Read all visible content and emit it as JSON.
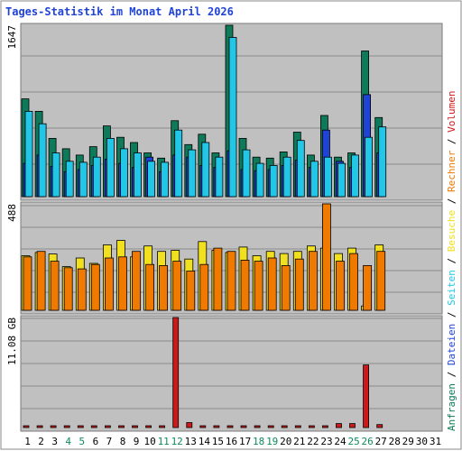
{
  "title": "Tages-Statistik im Monat April 2026",
  "legend": [
    {
      "text": "Anfragen",
      "color": "#0e7a5a"
    },
    {
      "text": "Dateien",
      "color": "#1f43d6"
    },
    {
      "text": "Seiten",
      "color": "#22c7e8"
    },
    {
      "text": "Besuche",
      "color": "#f0e020"
    },
    {
      "text": "Rechner",
      "color": "#f07a00"
    },
    {
      "text": "Volumen",
      "color": "#cc1a1a"
    }
  ],
  "chart_data": {
    "type": "bar",
    "categories": [
      "1",
      "2",
      "3",
      "4",
      "5",
      "6",
      "7",
      "8",
      "9",
      "10",
      "11",
      "12",
      "13",
      "14",
      "15",
      "16",
      "17",
      "18",
      "19",
      "20",
      "21",
      "22",
      "23",
      "24",
      "25",
      "26",
      "27",
      "28",
      "29",
      "30",
      "31"
    ],
    "weekend_days": [
      "4",
      "5",
      "11",
      "12",
      "18",
      "19",
      "25",
      "26"
    ],
    "panels": [
      {
        "id": "top",
        "max_label": "1647",
        "ylim": [
          0,
          1647
        ],
        "series": [
          {
            "name": "Anfragen",
            "color": "#0e7a5a",
            "values": [
              940,
              820,
              560,
              460,
              400,
              480,
              680,
              570,
              520,
              420,
              370,
              730,
              500,
              600,
              420,
              1647,
              560,
              380,
              370,
              430,
              620,
              400,
              780,
              380,
              420,
              1400,
              760,
              0,
              0,
              0,
              0
            ]
          },
          {
            "name": "Dateien",
            "color": "#1f43d6",
            "values": [
              320,
              400,
              290,
              240,
              260,
              300,
              360,
              320,
              280,
              380,
              240,
              400,
              380,
              300,
              280,
              440,
              260,
              250,
              260,
              300,
              350,
              280,
              640,
              340,
              280,
              980,
              420,
              0,
              0,
              0,
              0
            ]
          },
          {
            "name": "Seiten",
            "color": "#22c7e8",
            "values": [
              820,
              700,
              420,
              340,
              330,
              380,
              560,
              460,
              420,
              340,
              330,
              640,
              450,
              520,
              380,
              1530,
              450,
              320,
              300,
              380,
              540,
              340,
              380,
              320,
              400,
              570,
              670,
              0,
              0,
              0,
              0
            ]
          }
        ]
      },
      {
        "id": "middle",
        "max_label": "488",
        "ylim": [
          0,
          488
        ],
        "series": [
          {
            "name": "Besuche",
            "color": "#f0e020",
            "values": [
              250,
              265,
              258,
              200,
              240,
              215,
              300,
              320,
              245,
              295,
              270,
              275,
              235,
              315,
              275,
              265,
              290,
              250,
              270,
              260,
              270,
              295,
              285,
              260,
              285,
              20,
              300,
              0,
              0,
              0,
              0
            ]
          },
          {
            "name": "Rechner",
            "color": "#f07a00",
            "values": [
              245,
              270,
              225,
              195,
              190,
              210,
              240,
              245,
              270,
              210,
              205,
              225,
              180,
              210,
              285,
              270,
              230,
              225,
              240,
              205,
              235,
              270,
              488,
              225,
              260,
              205,
              270,
              0,
              0,
              0,
              0
            ]
          }
        ]
      },
      {
        "id": "bottom",
        "max_label": "11.08 GB",
        "ylim": [
          0,
          11.08
        ],
        "series": [
          {
            "name": "Volumen",
            "color": "#cc1a1a",
            "values": [
              0.1,
              0.1,
              0.1,
              0.1,
              0.1,
              0.1,
              0.1,
              0.1,
              0.1,
              0.1,
              0.1,
              11.08,
              0.5,
              0.1,
              0.1,
              0.1,
              0.1,
              0.1,
              0.1,
              0.1,
              0.1,
              0.1,
              0.1,
              0.4,
              0.4,
              6.3,
              0.3,
              0,
              0,
              0,
              0
            ]
          }
        ]
      }
    ]
  }
}
